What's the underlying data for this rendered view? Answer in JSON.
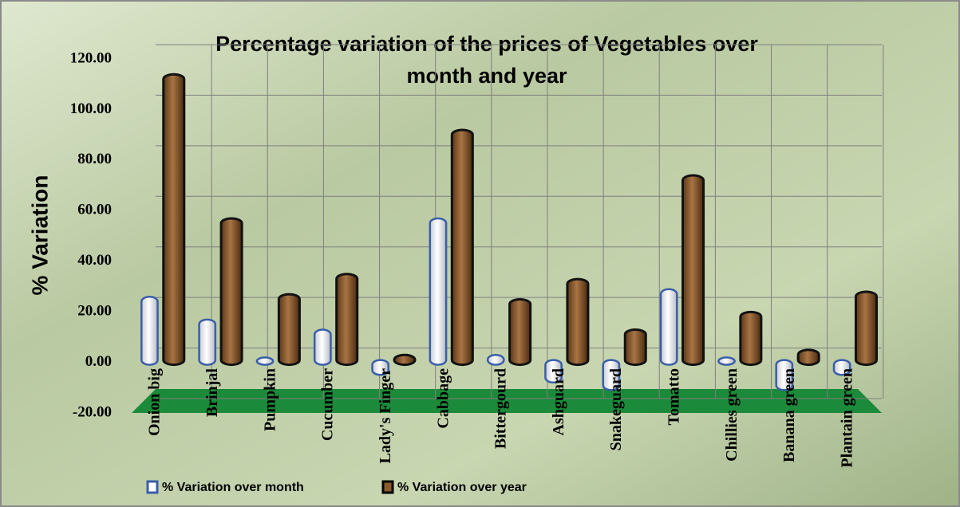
{
  "chart_data": {
    "type": "bar",
    "title": "Percentage variation of the prices of Vegetables over",
    "title_line2": "month and year",
    "y_label": "% Variation",
    "categories": [
      "Onion big",
      "Brinjal",
      "Pumpkin",
      "Cucumber",
      "Lady's Finger",
      "Cabbage",
      "Bittergourd",
      "Ashguard",
      "Snakeguard",
      "Tomatto",
      "Chillies green",
      "Banana green",
      "Plantain green"
    ],
    "series": [
      {
        "name": "%  Variation over month",
        "color": "#3a5ea8",
        "values": [
          25,
          16,
          1,
          12,
          -4,
          56,
          2,
          -7,
          -10,
          28,
          1,
          -10,
          -4
        ]
      },
      {
        "name": "%  Variation over year",
        "color": "#8b5a2b",
        "values": [
          113,
          56,
          26,
          34,
          2,
          91,
          24,
          32,
          12,
          73,
          19,
          4,
          27
        ]
      }
    ],
    "ylim": [
      -20,
      120
    ],
    "yticks": [
      {
        "value": -20,
        "label": "-20.00"
      },
      {
        "value": 0,
        "label": "0.00"
      },
      {
        "value": 20,
        "label": "20.00"
      },
      {
        "value": 40,
        "label": "40.00"
      },
      {
        "value": 60,
        "label": "60.00"
      },
      {
        "value": 80,
        "label": "80.00"
      },
      {
        "value": 100,
        "label": "100.00"
      },
      {
        "value": 120,
        "label": "120.00"
      }
    ],
    "grid": true
  }
}
